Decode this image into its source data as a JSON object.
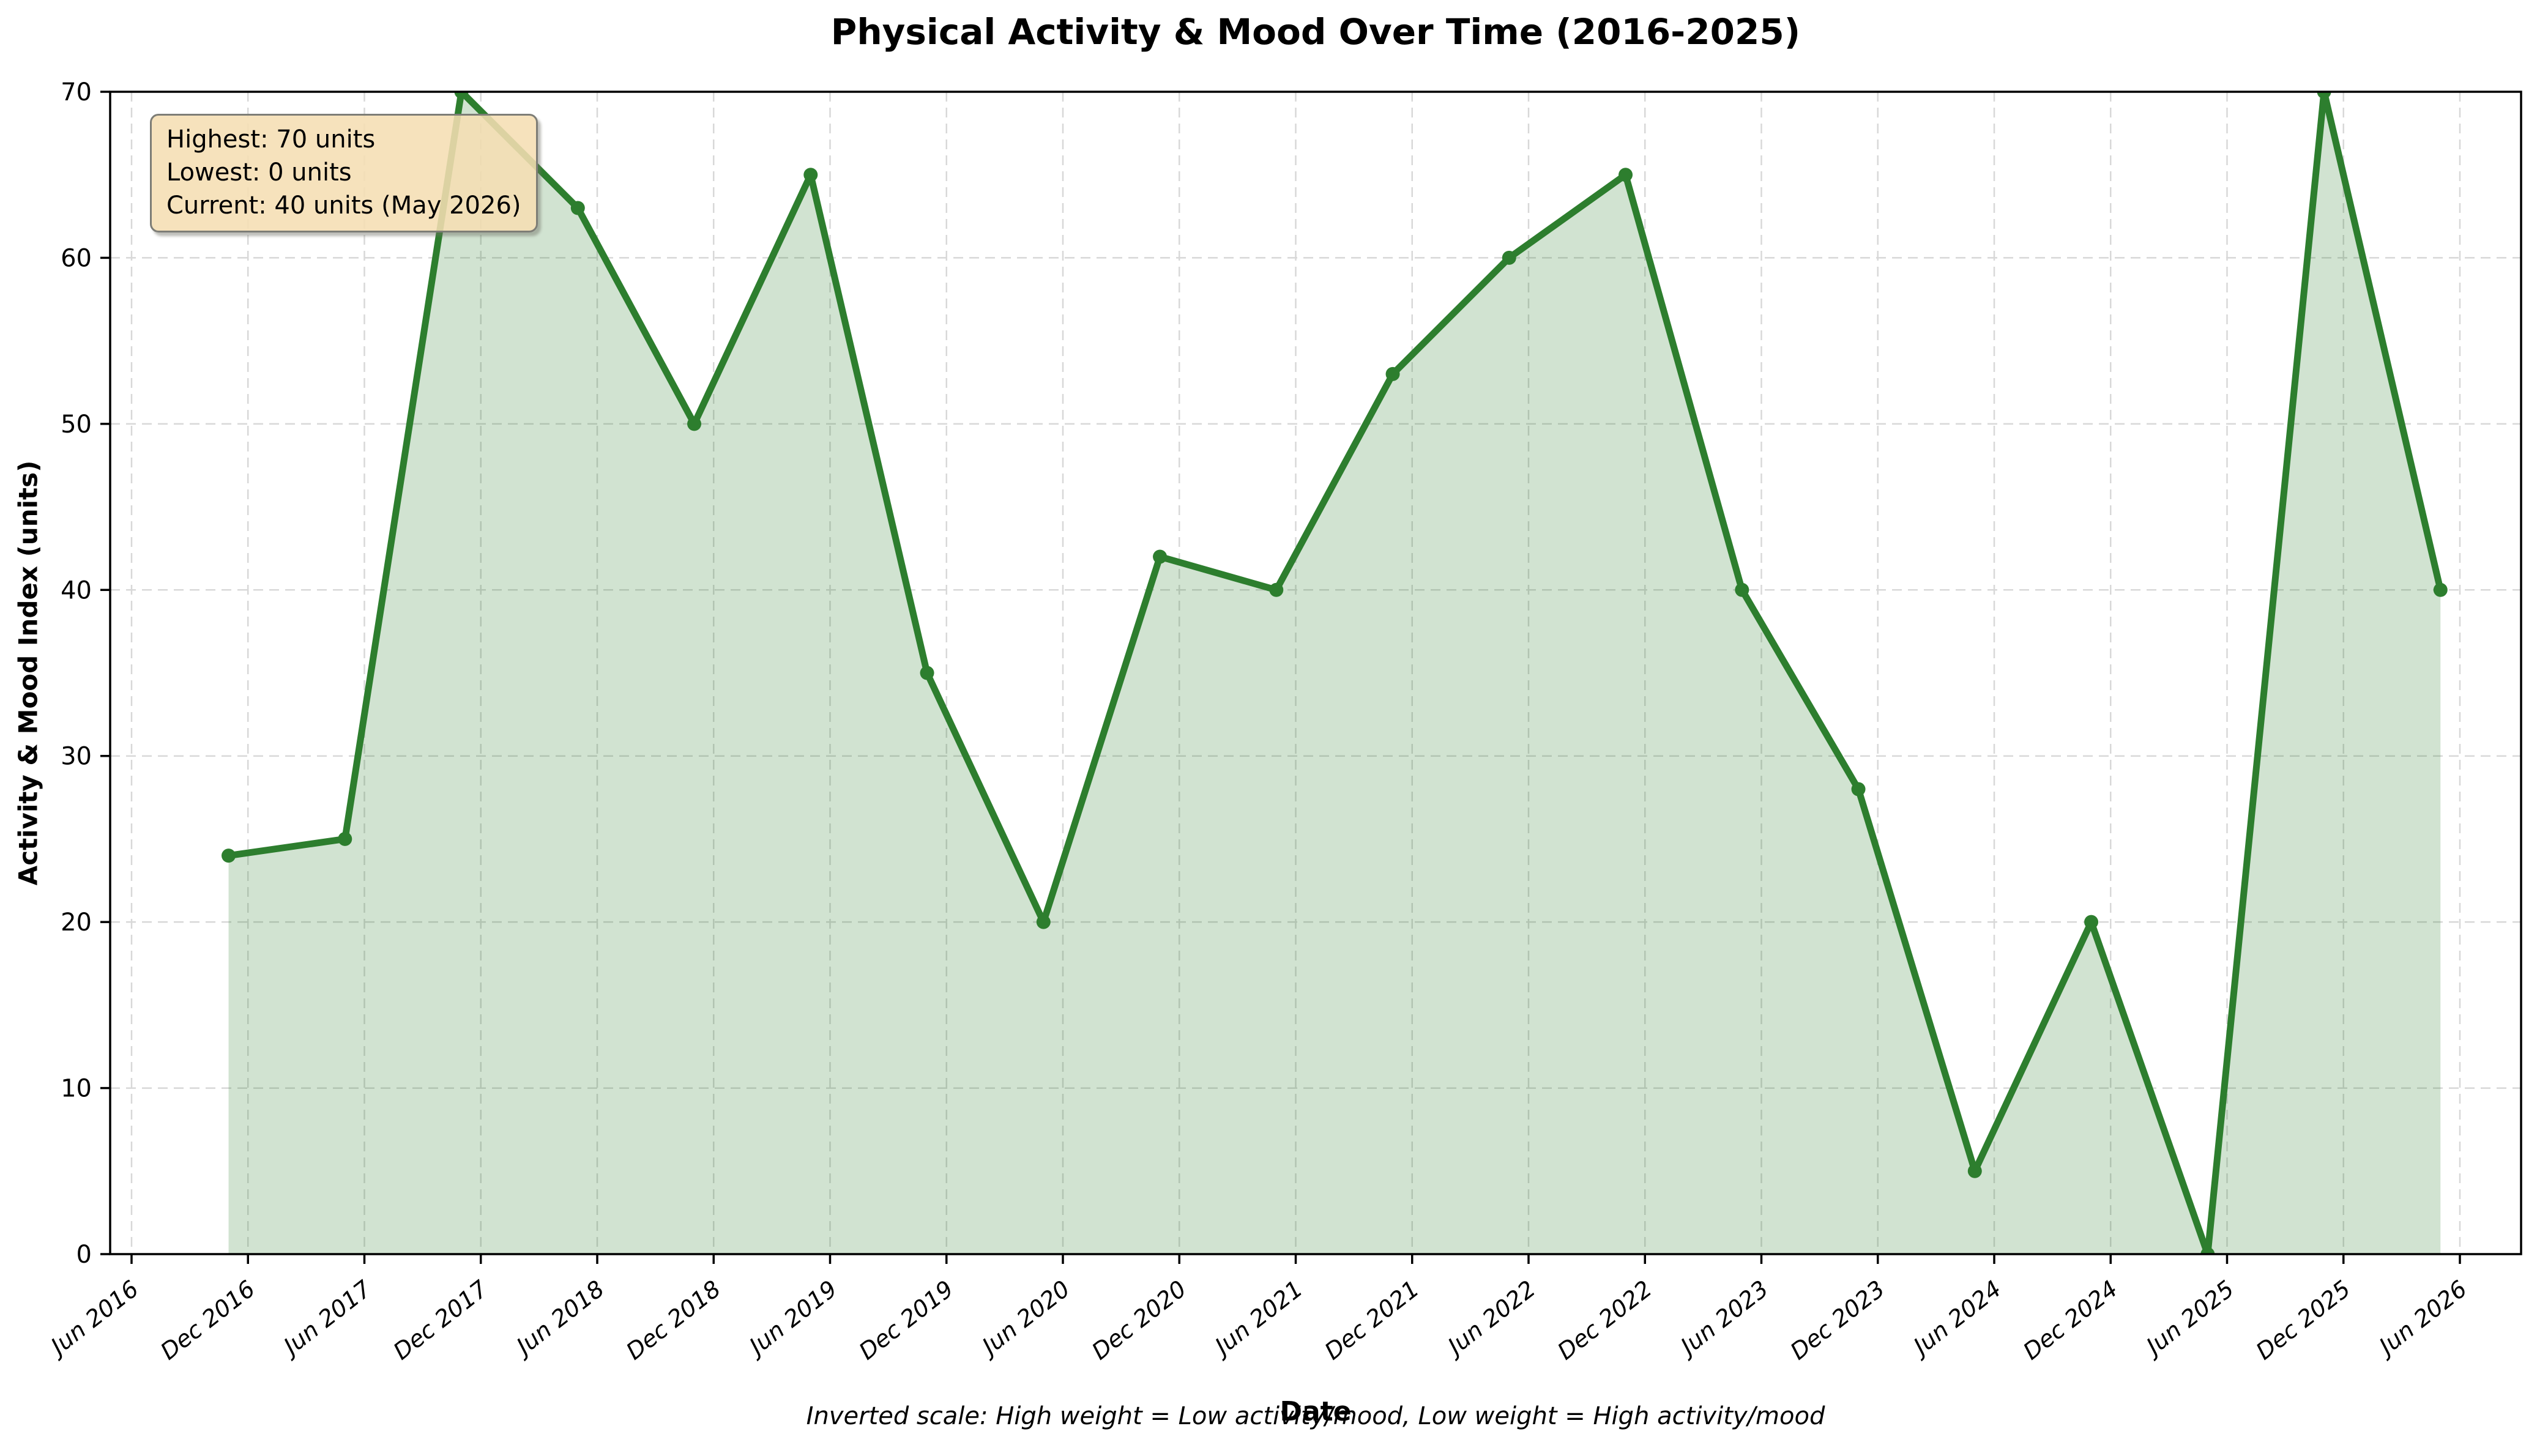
{
  "title": "Physical Activity & Mood Over Time (2016-2025)",
  "axes": {
    "xlabel": "Date",
    "ylabel": "Activity & Mood Index (units)"
  },
  "footnote": "Inverted scale: High weight = Low activity/mood, Low weight = High activity/mood",
  "annotation": {
    "lines": [
      "Highest: 70 units",
      "Lowest: 0 units",
      "Current: 40 units (May 2026)"
    ]
  },
  "chart_data": {
    "type": "area",
    "title": "Physical Activity & Mood Over Time (2016-2025)",
    "xlabel": "Date",
    "ylabel": "Activity & Mood Index (units)",
    "x": [
      "Nov 2016",
      "May 2017",
      "Nov 2017",
      "May 2018",
      "Nov 2018",
      "May 2019",
      "Nov 2019",
      "May 2020",
      "Nov 2020",
      "May 2021",
      "Nov 2021",
      "May 2022",
      "Nov 2022",
      "May 2023",
      "Nov 2023",
      "May 2024",
      "Nov 2024",
      "May 2025",
      "Nov 2025",
      "May 2026"
    ],
    "values": [
      24,
      25,
      70,
      63,
      50,
      65,
      35,
      20,
      42,
      40,
      53,
      60,
      65,
      40,
      28,
      5,
      20,
      0,
      70,
      40
    ],
    "x_months_from_jun2016": [
      5,
      11,
      17,
      23,
      29,
      35,
      41,
      47,
      53,
      59,
      65,
      71,
      77,
      83,
      89,
      95,
      101,
      107,
      113,
      119
    ],
    "xticks": [
      "Jun 2016",
      "Dec 2016",
      "Jun 2017",
      "Dec 2017",
      "Jun 2018",
      "Dec 2018",
      "Jun 2019",
      "Dec 2019",
      "Jun 2020",
      "Dec 2020",
      "Jun 2021",
      "Dec 2021",
      "Jun 2022",
      "Dec 2022",
      "Jun 2023",
      "Dec 2023",
      "Jun 2024",
      "Dec 2024",
      "Jun 2025",
      "Dec 2025",
      "Jun 2026"
    ],
    "xtick_months": [
      0,
      6,
      12,
      18,
      24,
      30,
      36,
      42,
      48,
      54,
      60,
      66,
      72,
      78,
      84,
      90,
      96,
      102,
      108,
      114,
      120
    ],
    "yticks": [
      0,
      10,
      20,
      30,
      40,
      50,
      60,
      70
    ],
    "ylim": [
      0,
      70
    ],
    "grid": true,
    "grid_style": "dashed",
    "legend": false,
    "line_color": "#2d7e2e",
    "marker_color": "#2d7e2e",
    "fill_color": "rgba(45,126,46,0.22)",
    "grid_color": "#d8d8d8",
    "axis_color": "#000000",
    "annotation_bg": "#f5deb3",
    "annotation_border": "#7d7d76"
  }
}
